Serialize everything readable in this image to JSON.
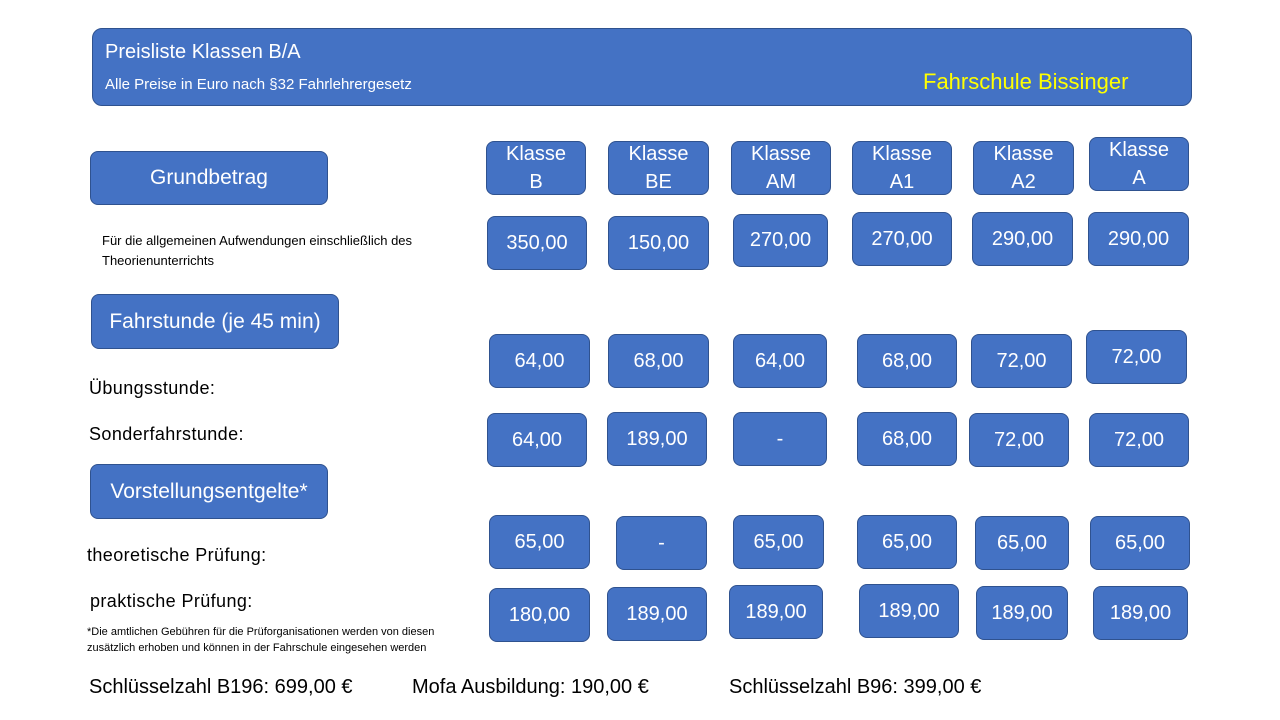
{
  "header": {
    "title": "Preisliste Klassen B/A",
    "subtitle": "Alle Preise in Euro nach §32 Fahrlehrergesetz",
    "brand": "Fahrschule Bissinger"
  },
  "sections": {
    "grundbetrag": "Grundbetrag",
    "fahrstunde": "Fahrstunde (je 45 min)",
    "vorstellung": "Vorstellungsentgelte*"
  },
  "classes": [
    {
      "line1": "Klasse",
      "line2": "B"
    },
    {
      "line1": "Klasse",
      "line2": "BE"
    },
    {
      "line1": "Klasse",
      "line2": "AM"
    },
    {
      "line1": "Klasse",
      "line2": "A1"
    },
    {
      "line1": "Klasse",
      "line2": "A2"
    },
    {
      "line1": "Klasse",
      "line2": "A"
    }
  ],
  "labels": {
    "grundbetrag_desc_1": "Für die allgemeinen Aufwendungen einschließlich des",
    "grundbetrag_desc_2": "Theorienunterrichts",
    "uebungsstunde": "Übungsstunde:",
    "sonderfahrstunde": "Sonderfahrstunde:",
    "theorie": "theoretische Prüfung:",
    "praxis": "praktische Prüfung:",
    "footnote_1": "*Die amtlichen Gebühren für die Prüforganisationen werden von diesen",
    "footnote_2": "zusätzlich erhoben und können in der Fahrschule eingesehen werden"
  },
  "prices": {
    "grundbetrag": [
      "350,00",
      "150,00",
      "270,00",
      "270,00",
      "290,00",
      "290,00"
    ],
    "uebungsstunde": [
      "64,00",
      "68,00",
      "64,00",
      "68,00",
      "72,00",
      "72,00"
    ],
    "sonderfahrstunde": [
      "64,00",
      "189,00",
      "-",
      "68,00",
      "72,00",
      "72,00"
    ],
    "theorie": [
      "65,00",
      "-",
      "65,00",
      "65,00",
      "65,00",
      "65,00"
    ],
    "praxis": [
      "180,00",
      "189,00",
      "189,00",
      "189,00",
      "189,00",
      "189,00"
    ]
  },
  "footer": {
    "b196": "Schlüsselzahl B196: 699,00 €",
    "mofa": "Mofa Ausbildung: 190,00 €",
    "b96": "Schlüsselzahl B96: 399,00 €"
  },
  "colors": {
    "box_fill": "#4472c4",
    "box_border": "#2f528f",
    "brand_text": "#ffff00"
  }
}
